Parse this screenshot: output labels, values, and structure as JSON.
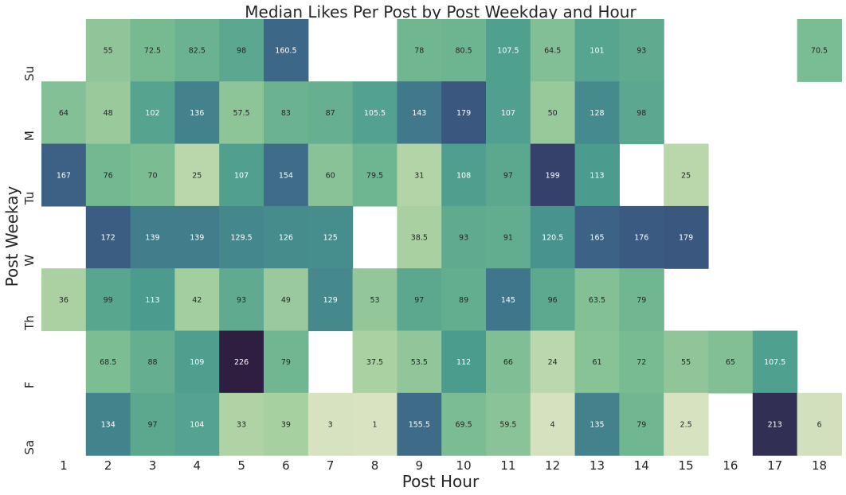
{
  "chart_data": {
    "type": "heatmap",
    "title": "Median Likes Per Post by Post Weekday and Hour",
    "xlabel": "Post Hour",
    "ylabel": "Post Weekay",
    "x_categories": [
      "1",
      "2",
      "3",
      "4",
      "5",
      "6",
      "7",
      "8",
      "9",
      "10",
      "11",
      "12",
      "13",
      "14",
      "15",
      "16",
      "17",
      "18"
    ],
    "y_categories": [
      "Su",
      "M",
      "Tu",
      "W",
      "Th",
      "F",
      "Sa"
    ],
    "values": [
      [
        null,
        55,
        72.5,
        82.5,
        98,
        160.5,
        null,
        null,
        78,
        80.5,
        107.5,
        64.5,
        101,
        93,
        null,
        null,
        null,
        70.5
      ],
      [
        64,
        48,
        102,
        136,
        57.5,
        83,
        87,
        105.5,
        143,
        179,
        107,
        50,
        128,
        98,
        null,
        null,
        null,
        null
      ],
      [
        167,
        76,
        70,
        25,
        107,
        154,
        60,
        79.5,
        31,
        108,
        97,
        199,
        113,
        null,
        25,
        null,
        null,
        null
      ],
      [
        null,
        172,
        139,
        139,
        129.5,
        126,
        125,
        null,
        38.5,
        93,
        91,
        120.5,
        165,
        176,
        179,
        null,
        null,
        null
      ],
      [
        36,
        99,
        113,
        42,
        93,
        49,
        129,
        53,
        97,
        89,
        145,
        96,
        63.5,
        79,
        null,
        null,
        null,
        null
      ],
      [
        null,
        68.5,
        88,
        109,
        226,
        79,
        null,
        37.5,
        53.5,
        112,
        66,
        24,
        61,
        72,
        55,
        65,
        107.5,
        null
      ],
      [
        null,
        134,
        97,
        104,
        33,
        39,
        3,
        1,
        155.5,
        69.5,
        59.5,
        4,
        135,
        79,
        2.5,
        null,
        213,
        6
      ]
    ],
    "value_labels": [
      [
        null,
        "55",
        "72.5",
        "82.5",
        "98",
        "160.5",
        null,
        null,
        "78",
        "80.5",
        "107.5",
        "64.5",
        "101",
        "93",
        null,
        null,
        null,
        "70.5"
      ],
      [
        "64",
        "48",
        "102",
        "136",
        "57.5",
        "83",
        "87",
        "105.5",
        "143",
        "179",
        "107",
        "50",
        "128",
        "98",
        null,
        null,
        null,
        null
      ],
      [
        "167",
        "76",
        "70",
        "25",
        "107",
        "154",
        "60",
        "79.5",
        "31",
        "108",
        "97",
        "199",
        "113",
        null,
        "25",
        null,
        null,
        null
      ],
      [
        null,
        "172",
        "139",
        "139",
        "129.5",
        "126",
        "125",
        null,
        "38.5",
        "93",
        "91",
        "120.5",
        "165",
        "176",
        "179",
        null,
        null,
        null
      ],
      [
        "36",
        "99",
        "113",
        "42",
        "93",
        "49",
        "129",
        "53",
        "97",
        "89",
        "145",
        "96",
        "63.5",
        "79",
        null,
        null,
        null,
        null
      ],
      [
        null,
        "68.5",
        "88",
        "109",
        "226",
        "79",
        null,
        "37.5",
        "53.5",
        "112",
        "66",
        "24",
        "61",
        "72",
        "55",
        "65",
        "107.5",
        null
      ],
      [
        null,
        "134",
        "97",
        "104",
        "33",
        "39",
        "3",
        "1",
        "155.5",
        "69.5",
        "59.5",
        "4",
        "135",
        "79",
        "2.5",
        null,
        "213",
        "6"
      ]
    ],
    "colorscale": [
      "#d9e3c2",
      "#a8d0a0",
      "#72b891",
      "#4a9b8e",
      "#3e6f8a",
      "#394f7c",
      "#2e1e40"
    ],
    "vmin": 1,
    "vmax": 226,
    "grid": false,
    "legend": "none"
  }
}
